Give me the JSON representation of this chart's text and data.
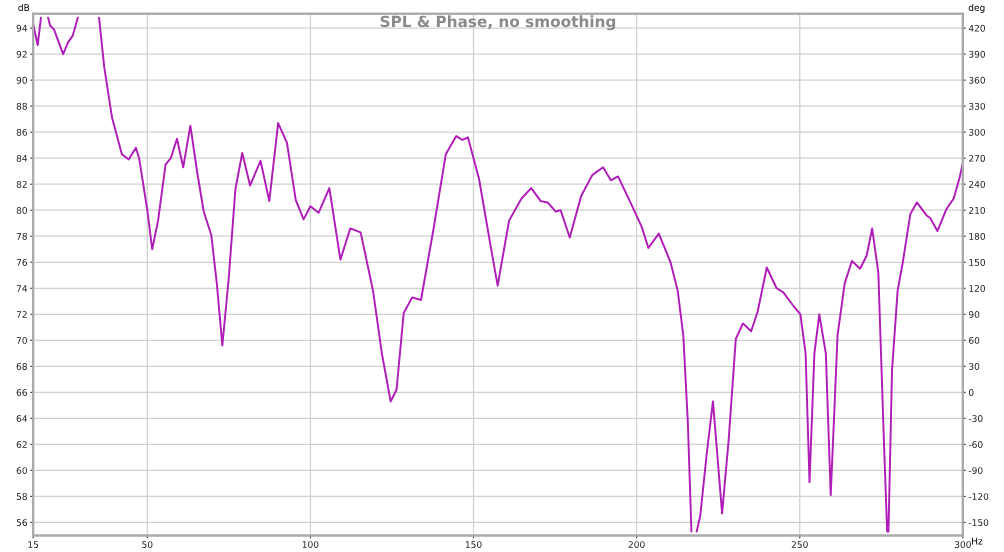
{
  "chart_data": {
    "type": "line",
    "title": "SPL & Phase, no smoothing",
    "xlabel": "Hz",
    "ylabel": "dB",
    "y2label": "deg",
    "xlim": [
      15,
      300
    ],
    "xticks": [
      15,
      50,
      100,
      150,
      200,
      250,
      300
    ],
    "ylim": [
      55.0,
      95.1
    ],
    "yticks": [
      56,
      58,
      60,
      62,
      64,
      66,
      68,
      70,
      72,
      74,
      76,
      78,
      80,
      82,
      84,
      86,
      88,
      90,
      92,
      94
    ],
    "y2lim": [
      -165,
      436.5
    ],
    "y2ticks": [
      -150,
      -120,
      -90,
      -60,
      -30,
      0,
      30,
      60,
      90,
      120,
      150,
      180,
      210,
      240,
      270,
      300,
      330,
      360,
      390,
      420
    ],
    "grid": true,
    "marker": "none",
    "line_style": "solid",
    "series": [
      {
        "color": "#b01cb8",
        "x": [
          15,
          16.4,
          17.4,
          17.5,
          19.6,
          20.2,
          21.4,
          24.2,
          25.7,
          27.1,
          28.7,
          28.8,
          35.2,
          36.8,
          39.2,
          42.2,
          44.3,
          46.5,
          47.5,
          50.0,
          51.5,
          53.3,
          55.6,
          57.2,
          59.1,
          61.0,
          63.2,
          65.3,
          67.3,
          69.6,
          71.3,
          73.0,
          75.0,
          77.0,
          79.1,
          81.5,
          84.7,
          87.4,
          90.1,
          92.8,
          95.5,
          97.9,
          100,
          102.5,
          105.8,
          109.2,
          112.2,
          115.4,
          119.2,
          121.9,
          124.6,
          126.4,
          128.6,
          131.2,
          133.9,
          137.7,
          141.5,
          144.7,
          146.6,
          148.3,
          151.7,
          155.0,
          157.4,
          160.9,
          164.7,
          167.7,
          170.6,
          172.7,
          175.2,
          176.7,
          179.5,
          183.0,
          186.4,
          189.7,
          192.1,
          194.3,
          198.1,
          201.6,
          203.6,
          206.8,
          210.4,
          212.6,
          214.3,
          215.7,
          216.8,
          217.5,
          218.4,
          219.5,
          221.5,
          223.4,
          224.8,
          226.2,
          228.2,
          230.4,
          232.6,
          235.1,
          237.1,
          239.9,
          242.9,
          244.9,
          248.2,
          250.2,
          251.8,
          253.0,
          254.5,
          256.0,
          258.0,
          259.5,
          261.6,
          263.8,
          266.0,
          268.5,
          270.5,
          272.2,
          274.1,
          275.8,
          276.8,
          277.0,
          277.2,
          278.3,
          280.0,
          281.6,
          283.9,
          285.9,
          288.9,
          290.0,
          292.2,
          295.0,
          297.2,
          298.9,
          300
        ],
        "values": [
          94.3,
          92.7,
          94.8,
          null,
          94.8,
          94.2,
          93.9,
          92.0,
          92.9,
          93.4,
          94.8,
          null,
          94.8,
          91.0,
          87.1,
          84.3,
          83.9,
          84.8,
          84.0,
          80.0,
          77.0,
          79.2,
          83.5,
          84.0,
          85.5,
          83.3,
          86.5,
          82.9,
          79.9,
          78.1,
          74.4,
          69.6,
          74.9,
          81.6,
          84.4,
          81.9,
          83.8,
          80.7,
          86.7,
          85.2,
          80.8,
          79.3,
          80.3,
          79.8,
          81.7,
          76.2,
          78.6,
          78.3,
          73.8,
          69.0,
          65.3,
          66.2,
          72.1,
          73.3,
          73.1,
          78.5,
          84.3,
          85.7,
          85.4,
          85.6,
          82.4,
          77.6,
          74.2,
          79.2,
          80.9,
          81.7,
          80.7,
          80.6,
          79.9,
          80.0,
          77.9,
          81.1,
          82.7,
          83.3,
          82.3,
          82.6,
          80.6,
          78.7,
          77.1,
          78.2,
          76.0,
          73.8,
          70.4,
          63.7,
          55.3,
          null,
          55.3,
          56.5,
          61.3,
          65.3,
          61.0,
          56.7,
          62.3,
          70.1,
          71.3,
          70.7,
          72.2,
          75.6,
          74.0,
          73.7,
          72.6,
          72.0,
          69.0,
          59.1,
          69.0,
          72.0,
          69.0,
          58.1,
          70.4,
          74.4,
          76.1,
          75.5,
          76.5,
          78.6,
          75.2,
          62.3,
          55.3,
          null,
          55.3,
          67.7,
          73.8,
          76.0,
          79.7,
          80.6,
          79.6,
          79.4,
          78.4,
          80.1,
          80.9,
          82.4,
          83.6
        ]
      }
    ]
  }
}
